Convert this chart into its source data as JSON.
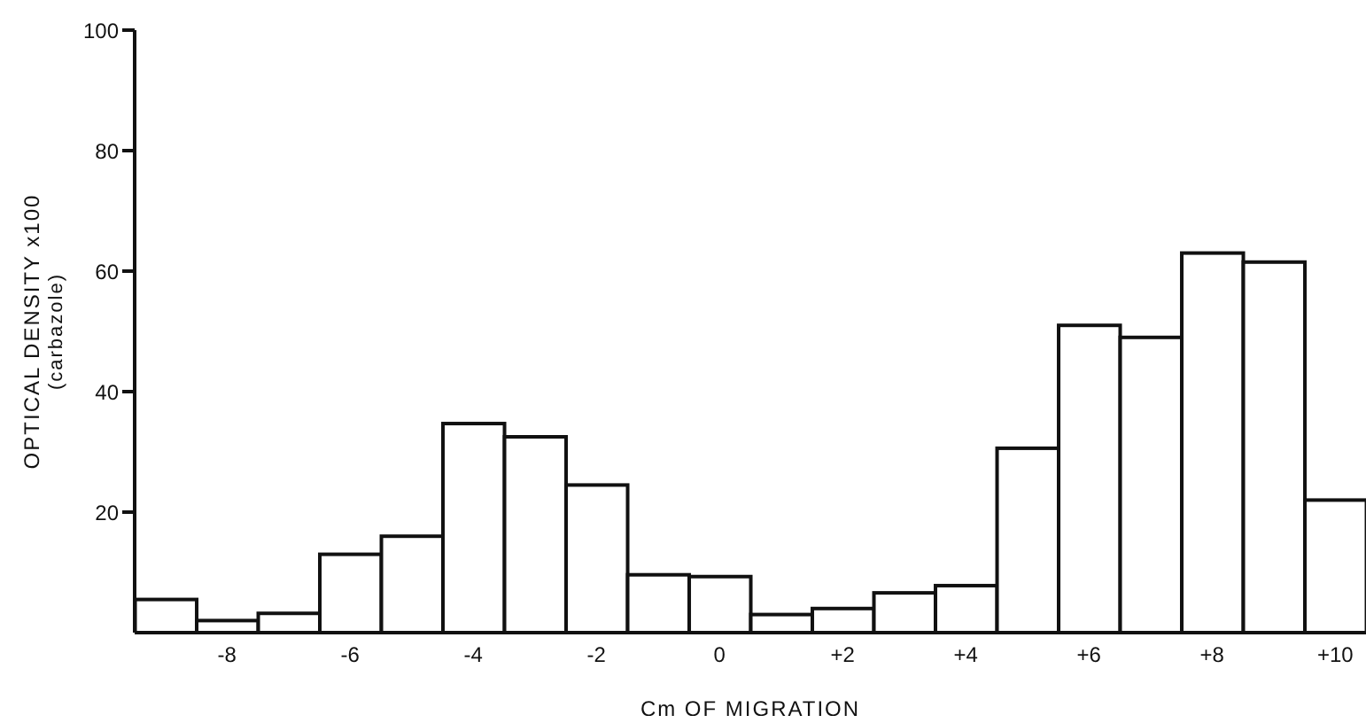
{
  "chart_data": {
    "type": "histogram",
    "xlabel": "Cm OF MIGRATION",
    "ylabel": "OPTICAL DENSITY x100\n(carbazole)",
    "bins": [
      -9.5,
      -8.5,
      -7.5,
      -6.5,
      -5.5,
      -4.5,
      -3.5,
      -2.5,
      -1.5,
      -0.5,
      0.5,
      1.5,
      2.5,
      3.5,
      4.5,
      5.5,
      6.5,
      7.5,
      8.5,
      9.5,
      10.5
    ],
    "values": [
      5.5,
      2,
      3.2,
      13,
      16,
      34.7,
      32.5,
      24.5,
      9.6,
      9.3,
      3,
      4,
      6.6,
      7.8,
      30.6,
      51,
      49,
      63,
      61.5,
      22
    ],
    "color": "#ffffff",
    "xlim": [
      -9.5,
      10.5
    ],
    "xticks": [
      {
        "value": -8,
        "label": "-8"
      },
      {
        "value": -6,
        "label": "-6"
      },
      {
        "value": -4,
        "label": "-4"
      },
      {
        "value": -2,
        "label": "-2"
      },
      0,
      {
        "value": 2,
        "label": "+2"
      },
      {
        "value": 4,
        "label": "+4"
      },
      {
        "value": 6,
        "label": "+6"
      },
      {
        "value": 8,
        "label": "+8"
      },
      {
        "value": 10,
        "label": "+10"
      }
    ],
    "ylim": [
      0,
      100
    ],
    "yticks": [
      20,
      40,
      60,
      80,
      100
    ],
    "grid": false
  }
}
